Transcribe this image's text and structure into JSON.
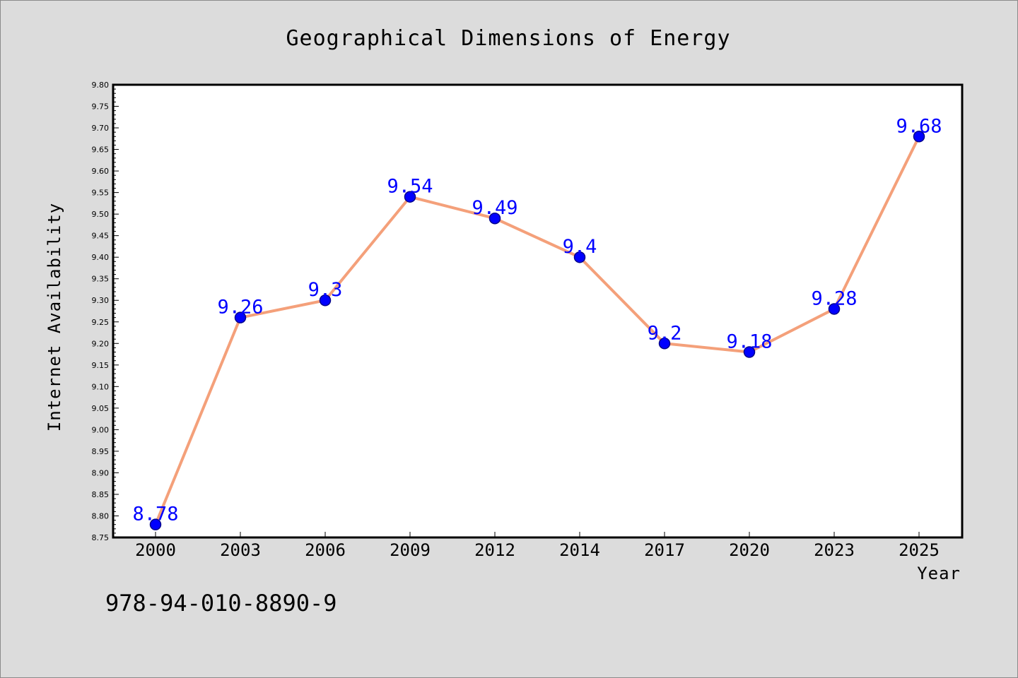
{
  "colors": {
    "background": "#dcdcdc",
    "plot_background": "#ffffff",
    "line": "#f4a07a",
    "marker": "#0000ff",
    "marker_edge": "#00008b",
    "data_label": "#0000ff"
  },
  "footer": {
    "isbn": "978-94-010-8890-9"
  },
  "chart_data": {
    "type": "line",
    "title": "Geographical Dimensions of Energy",
    "xlabel": "Year",
    "ylabel": "Internet Availability",
    "categories": [
      "2000",
      "2003",
      "2006",
      "2009",
      "2012",
      "2014",
      "2017",
      "2020",
      "2023",
      "2025"
    ],
    "series": [
      {
        "values": [
          8.78,
          9.26,
          9.3,
          9.54,
          9.49,
          9.4,
          9.2,
          9.18,
          9.28,
          9.68
        ],
        "data_labels": [
          "8.78",
          "9.26",
          "9.3",
          "9.54",
          "9.49",
          "9.4",
          "9.2",
          "9.18",
          "9.28",
          "9.68"
        ]
      }
    ],
    "ylim": [
      8.75,
      9.8
    ],
    "yticks": [
      "8.75",
      "8.80",
      "8.85",
      "8.90",
      "8.95",
      "9.00",
      "9.05",
      "9.10",
      "9.15",
      "9.20",
      "9.25",
      "9.30",
      "9.35",
      "9.40",
      "9.45",
      "9.50",
      "9.55",
      "9.60",
      "9.65",
      "9.70",
      "9.75",
      "9.80"
    ],
    "grid": false,
    "legend": "none",
    "markers": "circle"
  }
}
